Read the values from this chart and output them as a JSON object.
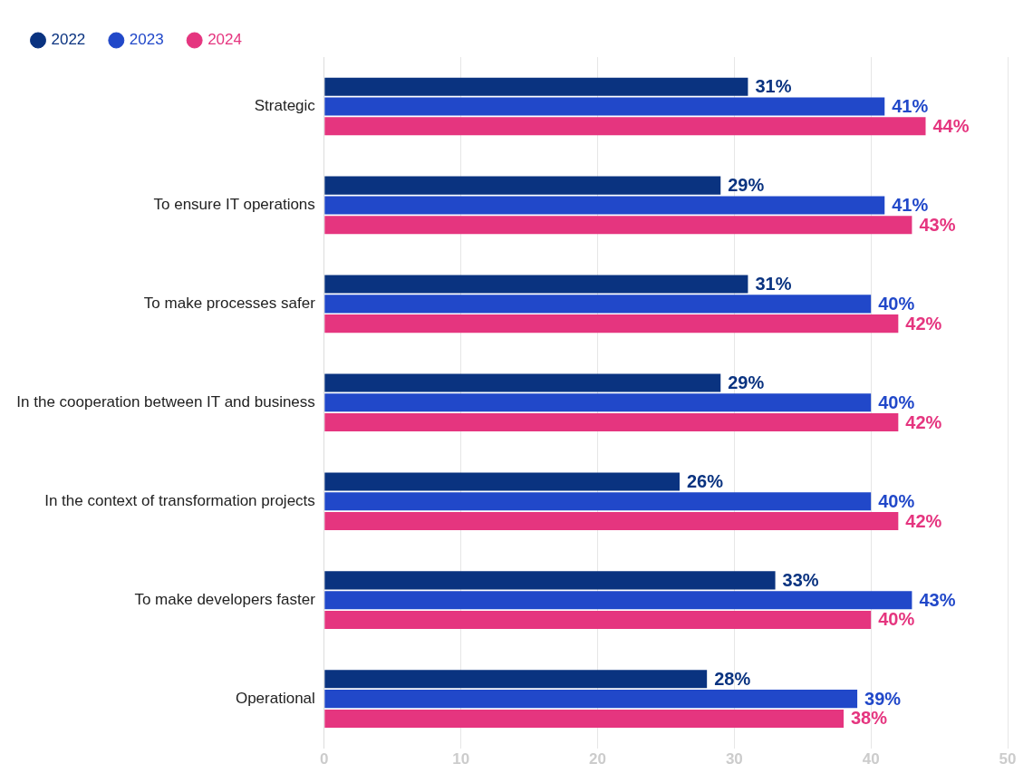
{
  "chart_data": {
    "type": "bar",
    "orientation": "horizontal",
    "categories": [
      "Strategic",
      "To ensure IT operations",
      "To make processes safer",
      "In the cooperation between IT and business",
      "In the context of transformation projects",
      "To make developers faster",
      "Operational"
    ],
    "series": [
      {
        "name": "2022",
        "color": "#0a3380",
        "values": [
          31,
          29,
          31,
          29,
          26,
          33,
          28
        ],
        "value_labels": [
          "31%",
          "29%",
          "31%",
          "29%",
          "26%",
          "33%",
          "28%"
        ]
      },
      {
        "name": "2023",
        "color": "#2148c9",
        "values": [
          41,
          41,
          40,
          40,
          40,
          43,
          39
        ],
        "value_labels": [
          "41%",
          "41%",
          "40%",
          "40%",
          "40%",
          "43%",
          "39%"
        ]
      },
      {
        "name": "2024",
        "color": "#e5357f",
        "values": [
          44,
          43,
          42,
          42,
          42,
          40,
          38
        ],
        "value_labels": [
          "44%",
          "43%",
          "42%",
          "42%",
          "42%",
          "40%",
          "38%"
        ]
      }
    ],
    "xlim": [
      0,
      50
    ],
    "xticks": [
      0,
      10,
      20,
      30,
      40,
      50
    ],
    "grid": "x",
    "legend": "top left"
  }
}
